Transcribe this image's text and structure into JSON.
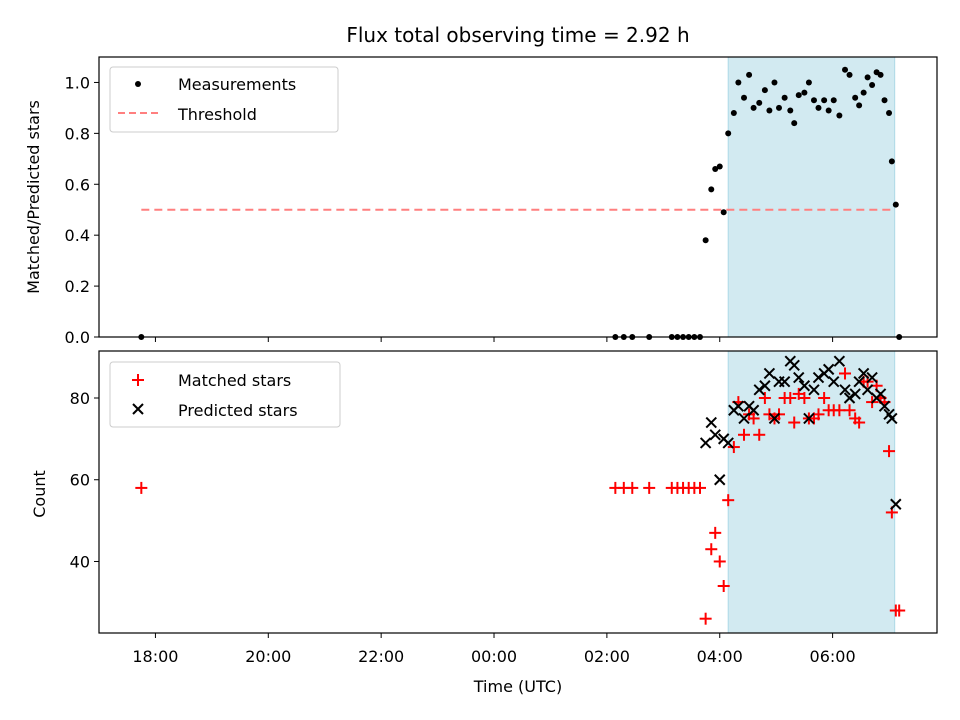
{
  "chart_data": [
    {
      "type": "scatter",
      "title": "Flux total observing time = 2.92 h",
      "xlabel": "",
      "ylabel": "Matched/Predicted stars",
      "ylim": [
        0,
        1.1
      ],
      "y_ticks": [
        "0.0",
        "0.2",
        "0.4",
        "0.6",
        "0.8",
        "1.0"
      ],
      "legend": {
        "position": "top-left",
        "entries": [
          "Measurements",
          "Threshold"
        ]
      },
      "shaded_region": {
        "x_start": 4.15,
        "x_end": 7.1,
        "color": "#add8e6"
      },
      "threshold": {
        "name": "Threshold",
        "y": 0.5,
        "x_start": 17.75,
        "x_end": 7.1,
        "color": "#ff7f7f"
      },
      "series": [
        {
          "name": "Measurements",
          "color": "#000000",
          "points": [
            [
              17.75,
              0.0
            ],
            [
              2.15,
              0.0
            ],
            [
              2.3,
              0.0
            ],
            [
              2.45,
              0.0
            ],
            [
              2.75,
              0.0
            ],
            [
              3.15,
              0.0
            ],
            [
              3.25,
              0.0
            ],
            [
              3.35,
              0.0
            ],
            [
              3.45,
              0.0
            ],
            [
              3.55,
              0.0
            ],
            [
              3.65,
              0.0
            ],
            [
              3.75,
              0.38
            ],
            [
              3.85,
              0.58
            ],
            [
              3.92,
              0.66
            ],
            [
              4.0,
              0.67
            ],
            [
              4.07,
              0.49
            ],
            [
              4.15,
              0.8
            ],
            [
              4.25,
              0.88
            ],
            [
              4.33,
              1.0
            ],
            [
              4.43,
              0.94
            ],
            [
              4.52,
              1.03
            ],
            [
              4.6,
              0.9
            ],
            [
              4.7,
              0.92
            ],
            [
              4.8,
              0.97
            ],
            [
              4.88,
              0.89
            ],
            [
              4.97,
              1.0
            ],
            [
              5.05,
              0.9
            ],
            [
              5.15,
              0.94
            ],
            [
              5.25,
              0.89
            ],
            [
              5.32,
              0.84
            ],
            [
              5.4,
              0.95
            ],
            [
              5.5,
              0.96
            ],
            [
              5.58,
              1.0
            ],
            [
              5.67,
              0.93
            ],
            [
              5.75,
              0.9
            ],
            [
              5.85,
              0.93
            ],
            [
              5.93,
              0.89
            ],
            [
              6.02,
              0.93
            ],
            [
              6.12,
              0.87
            ],
            [
              6.22,
              1.05
            ],
            [
              6.3,
              1.03
            ],
            [
              6.4,
              0.94
            ],
            [
              6.47,
              0.91
            ],
            [
              6.55,
              0.96
            ],
            [
              6.62,
              1.02
            ],
            [
              6.7,
              0.99
            ],
            [
              6.78,
              1.04
            ],
            [
              6.85,
              1.03
            ],
            [
              6.92,
              0.93
            ],
            [
              7.0,
              0.88
            ],
            [
              7.05,
              0.69
            ],
            [
              7.12,
              0.52
            ],
            [
              7.18,
              0.0
            ]
          ]
        }
      ]
    },
    {
      "type": "scatter",
      "title": "",
      "xlabel": "Time (UTC)",
      "ylabel": "Count",
      "ylim": [
        22.5,
        91.5
      ],
      "y_ticks": [
        "40",
        "60",
        "80"
      ],
      "x_ticks": [
        "18:00",
        "20:00",
        "22:00",
        "00:00",
        "02:00",
        "04:00",
        "06:00"
      ],
      "legend": {
        "position": "top-left",
        "entries": [
          "Matched stars",
          "Predicted stars"
        ]
      },
      "shaded_region": {
        "x_start": 4.15,
        "x_end": 7.1,
        "color": "#add8e6"
      },
      "series": [
        {
          "name": "Matched stars",
          "marker": "plus",
          "color": "#ff0000",
          "points": [
            [
              17.75,
              58
            ],
            [
              2.15,
              58
            ],
            [
              2.3,
              58
            ],
            [
              2.45,
              58
            ],
            [
              2.75,
              58
            ],
            [
              3.15,
              58
            ],
            [
              3.25,
              58
            ],
            [
              3.35,
              58
            ],
            [
              3.45,
              58
            ],
            [
              3.55,
              58
            ],
            [
              3.65,
              58
            ],
            [
              3.75,
              26
            ],
            [
              3.85,
              43
            ],
            [
              3.92,
              47
            ],
            [
              4.0,
              40
            ],
            [
              4.07,
              34
            ],
            [
              4.15,
              55
            ],
            [
              4.25,
              68
            ],
            [
              4.33,
              79
            ],
            [
              4.43,
              71
            ],
            [
              4.52,
              76
            ],
            [
              4.6,
              75
            ],
            [
              4.7,
              71
            ],
            [
              4.8,
              80
            ],
            [
              4.88,
              76
            ],
            [
              4.97,
              75
            ],
            [
              5.05,
              76
            ],
            [
              5.15,
              80
            ],
            [
              5.25,
              80
            ],
            [
              5.32,
              74
            ],
            [
              5.4,
              81
            ],
            [
              5.5,
              80
            ],
            [
              5.58,
              75
            ],
            [
              5.67,
              75
            ],
            [
              5.75,
              76
            ],
            [
              5.85,
              80
            ],
            [
              5.93,
              77
            ],
            [
              6.02,
              77
            ],
            [
              6.12,
              77
            ],
            [
              6.22,
              86
            ],
            [
              6.3,
              77
            ],
            [
              6.4,
              75
            ],
            [
              6.47,
              74
            ],
            [
              6.55,
              84
            ],
            [
              6.62,
              84
            ],
            [
              6.7,
              79
            ],
            [
              6.78,
              83
            ],
            [
              6.85,
              80
            ],
            [
              6.92,
              79
            ],
            [
              7.0,
              67
            ],
            [
              7.05,
              52
            ],
            [
              7.12,
              28
            ],
            [
              7.18,
              28
            ]
          ]
        },
        {
          "name": "Predicted stars",
          "marker": "x",
          "color": "#000000",
          "points": [
            [
              3.75,
              69
            ],
            [
              3.85,
              74
            ],
            [
              3.92,
              71
            ],
            [
              4.0,
              60
            ],
            [
              4.07,
              70
            ],
            [
              4.15,
              69
            ],
            [
              4.25,
              77
            ],
            [
              4.33,
              78
            ],
            [
              4.43,
              75
            ],
            [
              4.52,
              78
            ],
            [
              4.6,
              77
            ],
            [
              4.7,
              82
            ],
            [
              4.8,
              83
            ],
            [
              4.88,
              86
            ],
            [
              4.97,
              75
            ],
            [
              5.05,
              84
            ],
            [
              5.15,
              84
            ],
            [
              5.25,
              89
            ],
            [
              5.32,
              88
            ],
            [
              5.4,
              85
            ],
            [
              5.5,
              83
            ],
            [
              5.58,
              75
            ],
            [
              5.67,
              82
            ],
            [
              5.75,
              85
            ],
            [
              5.85,
              86
            ],
            [
              5.93,
              87
            ],
            [
              6.02,
              84
            ],
            [
              6.12,
              89
            ],
            [
              6.22,
              82
            ],
            [
              6.3,
              80
            ],
            [
              6.4,
              81
            ],
            [
              6.47,
              84
            ],
            [
              6.55,
              86
            ],
            [
              6.62,
              82
            ],
            [
              6.7,
              85
            ],
            [
              6.78,
              80
            ],
            [
              6.85,
              81
            ],
            [
              6.92,
              78
            ],
            [
              7.0,
              76
            ],
            [
              7.05,
              75
            ],
            [
              7.12,
              54
            ]
          ]
        }
      ]
    }
  ]
}
